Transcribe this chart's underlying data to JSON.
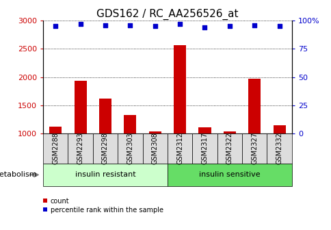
{
  "title": "GDS162 / RC_AA256526_at",
  "samples": [
    "GSM2288",
    "GSM2293",
    "GSM2298",
    "GSM2303",
    "GSM2308",
    "GSM2312",
    "GSM2317",
    "GSM2322",
    "GSM2327",
    "GSM2332"
  ],
  "counts": [
    1120,
    1930,
    1620,
    1330,
    1040,
    2570,
    1110,
    1040,
    1970,
    1150
  ],
  "percentile_ranks": [
    95,
    97,
    96,
    96,
    95,
    97,
    94,
    95,
    96,
    95
  ],
  "groups": [
    {
      "label": "insulin resistant",
      "indices": [
        0,
        1,
        2,
        3,
        4
      ],
      "color": "#ccffcc"
    },
    {
      "label": "insulin sensitive",
      "indices": [
        5,
        6,
        7,
        8,
        9
      ],
      "color": "#66dd66"
    }
  ],
  "group_row_label": "metabolism",
  "ylim_left": [
    1000,
    3000
  ],
  "ylim_right": [
    0,
    100
  ],
  "yticks_left": [
    1000,
    1500,
    2000,
    2500,
    3000
  ],
  "yticks_right": [
    0,
    25,
    50,
    75,
    100
  ],
  "bar_color": "#cc0000",
  "dot_color": "#0000cc",
  "bar_width": 0.5,
  "grid_color": "#000000",
  "background_color": "#ffffff",
  "tick_label_color_left": "#cc0000",
  "tick_label_color_right": "#0000cc",
  "title_fontsize": 11,
  "tick_fontsize": 8,
  "sample_fontsize": 7,
  "label_fontsize": 8,
  "group_fontsize": 8,
  "legend_fontsize": 7
}
